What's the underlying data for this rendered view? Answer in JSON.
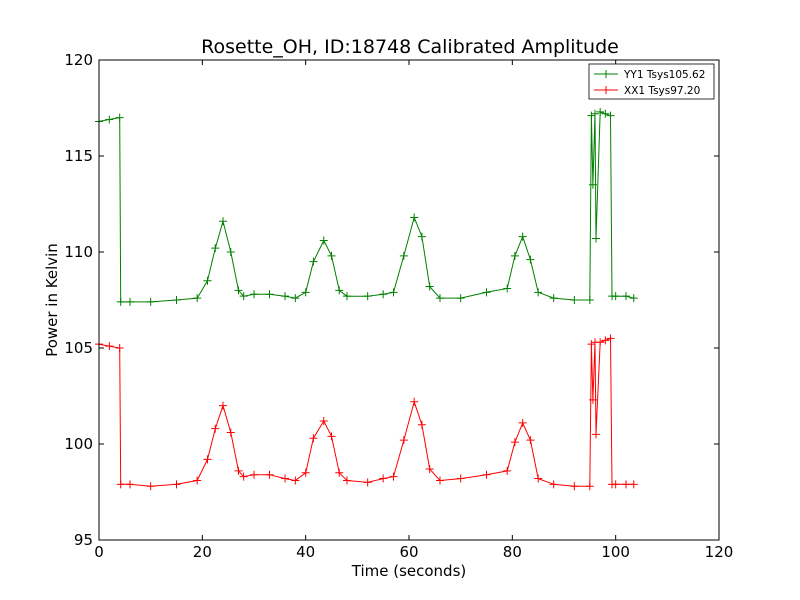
{
  "chart_data": {
    "type": "line",
    "title": "Rosette_OH, ID:18748 Calibrated Amplitude",
    "xlabel": "Time (seconds)",
    "ylabel": "Power in Kelvin",
    "xlim": [
      0,
      120
    ],
    "ylim": [
      95,
      120
    ],
    "xticks": [
      "0",
      "20",
      "40",
      "60",
      "80",
      "100",
      "120"
    ],
    "yticks": [
      "95",
      "100",
      "105",
      "110",
      "115",
      "120"
    ],
    "grid": false,
    "legend_position": "top-right",
    "marker": "+",
    "series": [
      {
        "name": "YY1 Tsys105.62",
        "color": "#008000",
        "x": [
          0,
          2,
          4,
          4.2,
          6,
          10,
          15,
          19,
          21,
          22.5,
          24,
          25.5,
          27,
          28,
          30,
          33,
          36,
          38,
          40,
          41.5,
          43.5,
          45,
          46.5,
          48,
          52,
          55,
          57,
          59,
          61,
          62.5,
          64,
          66,
          70,
          75,
          79,
          80.5,
          82,
          83.5,
          85,
          88,
          92,
          95,
          95.3,
          95.6,
          96,
          96.2,
          97,
          98,
          99,
          99.3,
          100,
          102,
          103.5
        ],
        "y": [
          116.8,
          116.9,
          117.0,
          107.4,
          107.4,
          107.4,
          107.5,
          107.6,
          108.5,
          110.2,
          111.6,
          110.0,
          108.0,
          107.7,
          107.8,
          107.8,
          107.7,
          107.6,
          107.9,
          109.5,
          110.6,
          109.8,
          108.0,
          107.7,
          107.7,
          107.8,
          107.9,
          109.8,
          111.8,
          110.8,
          108.2,
          107.6,
          107.6,
          107.9,
          108.1,
          109.8,
          110.8,
          109.6,
          107.9,
          107.6,
          107.5,
          107.5,
          117.1,
          113.5,
          117.2,
          110.7,
          117.3,
          117.2,
          117.1,
          107.7,
          107.7,
          107.7,
          107.6
        ]
      },
      {
        "name": "XX1 Tsys97.20",
        "color": "#ff0000",
        "x": [
          0,
          2,
          4,
          4.2,
          6,
          10,
          15,
          19,
          21,
          22.5,
          24,
          25.5,
          27,
          28,
          30,
          33,
          36,
          38,
          40,
          41.5,
          43.5,
          45,
          46.5,
          48,
          52,
          55,
          57,
          59,
          61,
          62.5,
          64,
          66,
          70,
          75,
          79,
          80.5,
          82,
          83.5,
          85,
          88,
          92,
          95,
          95.3,
          95.6,
          96,
          96.2,
          97,
          98,
          99,
          99.3,
          100,
          102,
          103.5
        ],
        "y": [
          105.2,
          105.1,
          105.0,
          97.9,
          97.9,
          97.8,
          97.9,
          98.1,
          99.2,
          100.8,
          102.0,
          100.6,
          98.6,
          98.3,
          98.4,
          98.4,
          98.2,
          98.1,
          98.5,
          100.3,
          101.2,
          100.4,
          98.5,
          98.1,
          98.0,
          98.2,
          98.3,
          100.2,
          102.2,
          101.0,
          98.7,
          98.1,
          98.2,
          98.4,
          98.6,
          100.1,
          101.1,
          100.2,
          98.2,
          97.9,
          97.8,
          97.8,
          105.2,
          102.3,
          105.3,
          100.5,
          105.3,
          105.4,
          105.5,
          97.9,
          97.9,
          97.9,
          97.9
        ]
      }
    ]
  }
}
